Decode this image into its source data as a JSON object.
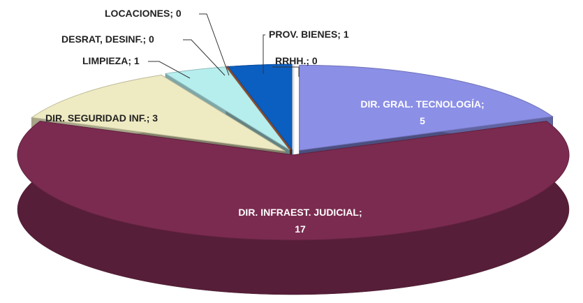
{
  "chart_data": {
    "type": "pie",
    "separator": ";",
    "categories": [
      "DIR. GRAL. TECNOLOGÍA",
      "DIR. INFRAEST. JUDICIAL",
      "DIR. SEGURIDAD INF.",
      "LIMPIEZA",
      "DESRAT, DESINF.",
      "LOCACIONES",
      "PROV. BIENES",
      "RRHH."
    ],
    "values": [
      5,
      17,
      3,
      1,
      0,
      0,
      1,
      0
    ],
    "colors": [
      "#8b8fe6",
      "#7b2b50",
      "#eeeac2",
      "#b6eeee",
      "#c0504d",
      "#8b4a2b",
      "#0b5fc1",
      "#ffffff"
    ]
  }
}
